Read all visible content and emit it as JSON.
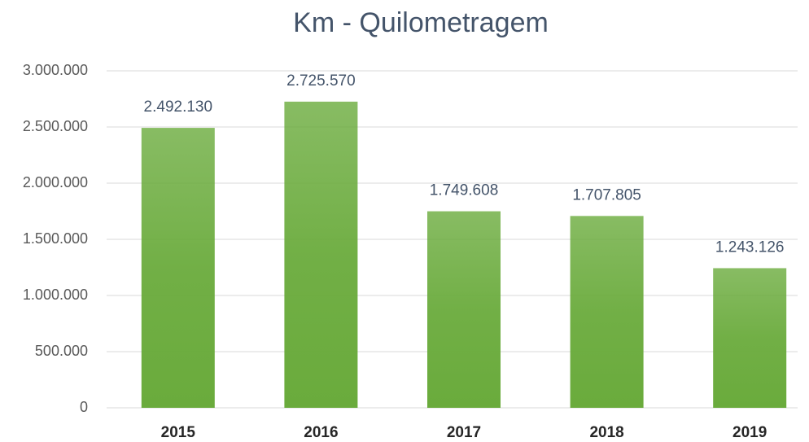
{
  "chart_data": {
    "type": "bar",
    "title": "Km - Quilometragem",
    "categories": [
      "2015",
      "2016",
      "2017",
      "2018",
      "2019"
    ],
    "values": [
      2492130,
      2725570,
      1749608,
      1707805,
      1243126
    ],
    "value_labels": [
      "2.492.130",
      "2.725.570",
      "1.749.608",
      "1.707.805",
      "1.243.126"
    ],
    "color": "#6aab3c",
    "ylim": [
      0,
      3000000
    ],
    "yticks": [
      0,
      {
        "value": 500000,
        "label": "500.000"
      },
      {
        "value": 1000000,
        "label": "1.000.000"
      },
      {
        "value": 1500000,
        "label": "1.500.000"
      },
      {
        "value": 2000000,
        "label": "2.000.000"
      },
      {
        "value": 2500000,
        "label": "2.500.000"
      },
      {
        "value": 3000000,
        "label": "3.000.000"
      }
    ],
    "grid": true
  }
}
